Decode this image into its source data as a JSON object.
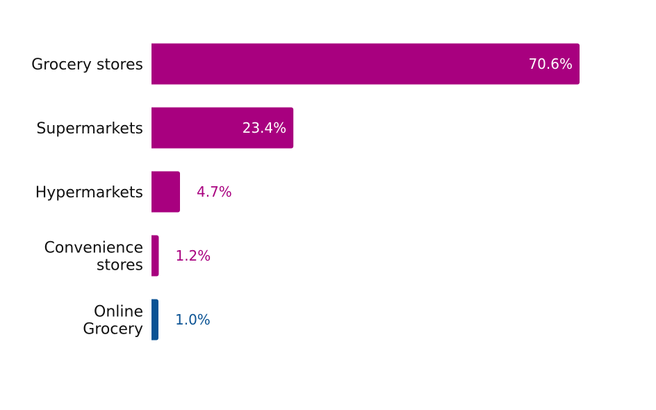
{
  "chart_data": {
    "type": "bar",
    "orientation": "horizontal",
    "title": "",
    "xlabel": "",
    "ylabel": "",
    "grid": false,
    "legend": "none",
    "xlim": [
      0,
      100
    ],
    "categories": [
      [
        "Grocery stores"
      ],
      [
        "Supermarkets"
      ],
      [
        "Hypermarkets"
      ],
      [
        "Convenience",
        "stores"
      ],
      [
        "Online",
        "Grocery"
      ]
    ],
    "values": [
      70.6,
      23.4,
      4.7,
      1.2,
      1.0
    ],
    "value_labels": [
      "70.6%",
      "23.4%",
      "4.7%",
      "1.2%",
      "1.0%"
    ],
    "colors": [
      "#a8007f",
      "#a8007f",
      "#a8007f",
      "#a8007f",
      "#0b5394"
    ]
  }
}
